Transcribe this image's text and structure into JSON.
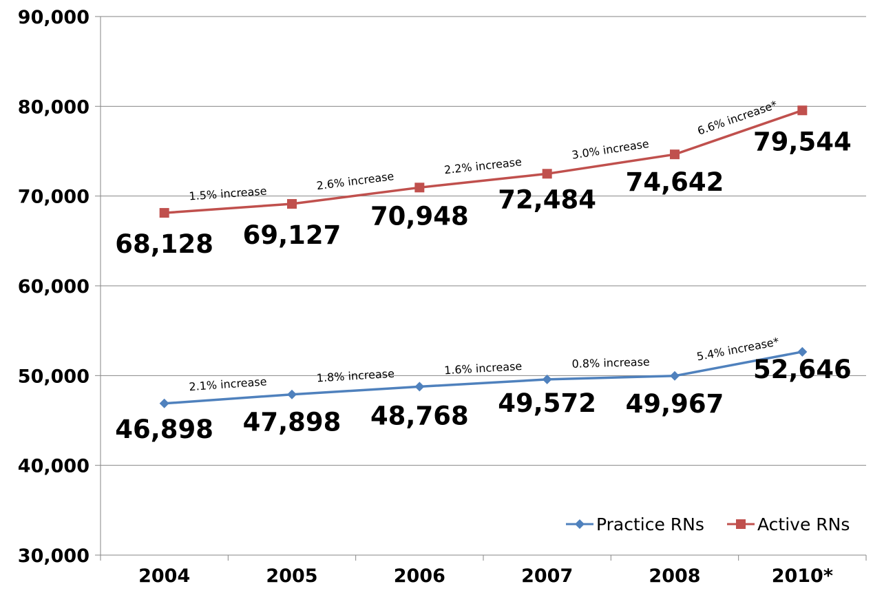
{
  "chart_data": {
    "type": "line",
    "categories": [
      "2004",
      "2005",
      "2006",
      "2007",
      "2008",
      "2010*"
    ],
    "ylim": [
      30000,
      90000
    ],
    "yticks": [
      30000,
      40000,
      50000,
      60000,
      70000,
      80000,
      90000
    ],
    "ytick_labels": [
      "30,000",
      "40,000",
      "50,000",
      "60,000",
      "70,000",
      "80,000",
      "90,000"
    ],
    "grid": true,
    "legend_position": "bottom-right",
    "series": [
      {
        "name": "Practice RNs",
        "color": "#4f81bd",
        "marker": "diamond",
        "values": [
          46898,
          47898,
          48768,
          49572,
          49967,
          52646
        ],
        "labels": [
          "46,898",
          "47,898",
          "48,768",
          "49,572",
          "49,967",
          "52,646"
        ],
        "annotations": [
          "2.1% increase",
          "1.8% increase",
          "1.6% increase",
          "0.8% increase",
          "5.4% increase*"
        ]
      },
      {
        "name": "Active RNs",
        "color": "#c0504d",
        "marker": "square",
        "values": [
          68128,
          69127,
          70948,
          72484,
          74642,
          79544
        ],
        "labels": [
          "68,128",
          "69,127",
          "70,948",
          "72,484",
          "74,642",
          "79,544"
        ],
        "annotations": [
          "1.5% increase",
          "2.6% increase",
          "2.2% increase",
          "3.0% increase",
          "6.6% increase*"
        ]
      }
    ]
  },
  "colors": {
    "grid": "#868686",
    "axis": "#868686"
  }
}
